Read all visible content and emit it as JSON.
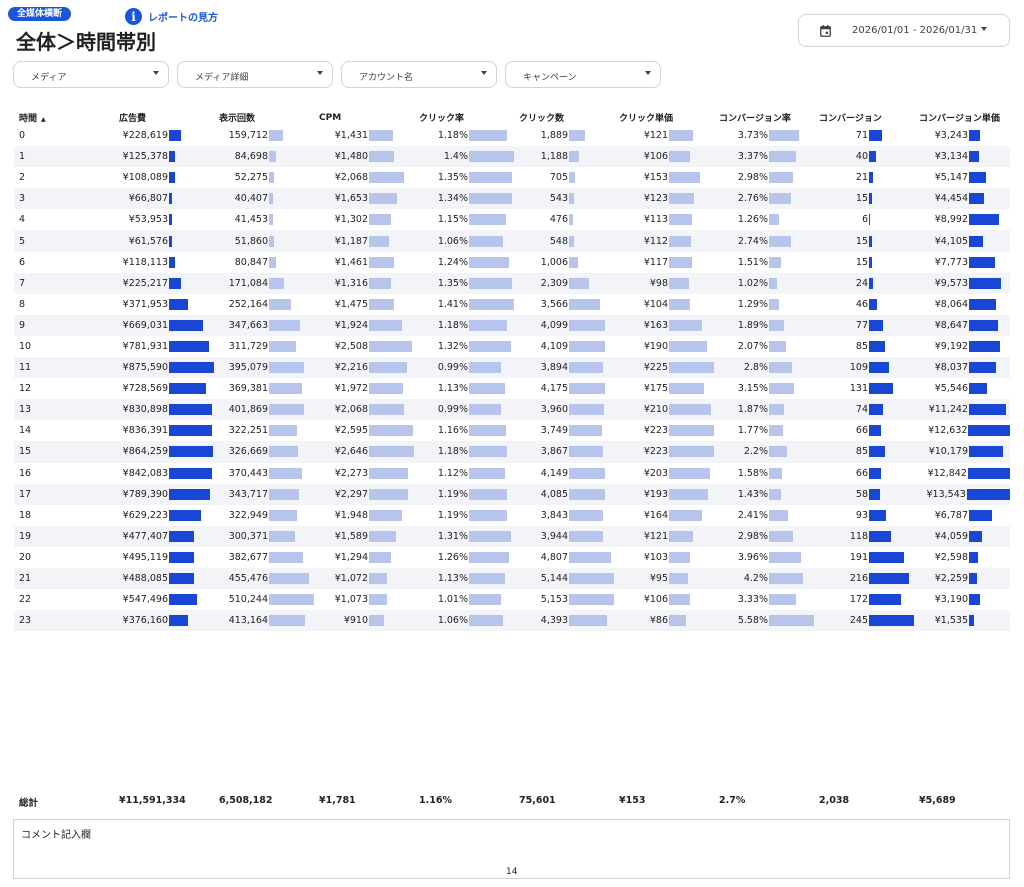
{
  "header": {
    "badge": "全媒体横断",
    "help_link": "レポートの見方",
    "help_icon": "info-icon",
    "title": "全体＞時間帯別"
  },
  "date_picker": {
    "icon": "calendar-icon",
    "range": "2026/01/01 - 2026/01/31"
  },
  "filters": [
    {
      "label": "メディア"
    },
    {
      "label": "メディア詳細"
    },
    {
      "label": "アカウント名"
    },
    {
      "label": "キャンペーン"
    }
  ],
  "table": {
    "headers": [
      "時間",
      "広告費",
      "表示回数",
      "CPM",
      "クリック率",
      "クリック数",
      "クリック単価",
      "コンバージョン率",
      "コンバージョン",
      "コンバージョン単価"
    ],
    "sort_indicator": "▲",
    "rows": [
      {
        "hour": "0",
        "cost": "¥228,619",
        "imp": "159,712",
        "cpm": "¥1,431",
        "ctr": "1.18%",
        "clicks": "1,889",
        "cpc": "¥121",
        "cvr": "3.73%",
        "cv": "71",
        "cpa": "¥3,243"
      },
      {
        "hour": "1",
        "cost": "¥125,378",
        "imp": "84,698",
        "cpm": "¥1,480",
        "ctr": "1.4%",
        "clicks": "1,188",
        "cpc": "¥106",
        "cvr": "3.37%",
        "cv": "40",
        "cpa": "¥3,134"
      },
      {
        "hour": "2",
        "cost": "¥108,089",
        "imp": "52,275",
        "cpm": "¥2,068",
        "ctr": "1.35%",
        "clicks": "705",
        "cpc": "¥153",
        "cvr": "2.98%",
        "cv": "21",
        "cpa": "¥5,147"
      },
      {
        "hour": "3",
        "cost": "¥66,807",
        "imp": "40,407",
        "cpm": "¥1,653",
        "ctr": "1.34%",
        "clicks": "543",
        "cpc": "¥123",
        "cvr": "2.76%",
        "cv": "15",
        "cpa": "¥4,454"
      },
      {
        "hour": "4",
        "cost": "¥53,953",
        "imp": "41,453",
        "cpm": "¥1,302",
        "ctr": "1.15%",
        "clicks": "476",
        "cpc": "¥113",
        "cvr": "1.26%",
        "cv": "6",
        "cpa": "¥8,992"
      },
      {
        "hour": "5",
        "cost": "¥61,576",
        "imp": "51,860",
        "cpm": "¥1,187",
        "ctr": "1.06%",
        "clicks": "548",
        "cpc": "¥112",
        "cvr": "2.74%",
        "cv": "15",
        "cpa": "¥4,105"
      },
      {
        "hour": "6",
        "cost": "¥118,113",
        "imp": "80,847",
        "cpm": "¥1,461",
        "ctr": "1.24%",
        "clicks": "1,006",
        "cpc": "¥117",
        "cvr": "1.51%",
        "cv": "15",
        "cpa": "¥7,773"
      },
      {
        "hour": "7",
        "cost": "¥225,217",
        "imp": "171,084",
        "cpm": "¥1,316",
        "ctr": "1.35%",
        "clicks": "2,309",
        "cpc": "¥98",
        "cvr": "1.02%",
        "cv": "24",
        "cpa": "¥9,573"
      },
      {
        "hour": "8",
        "cost": "¥371,953",
        "imp": "252,164",
        "cpm": "¥1,475",
        "ctr": "1.41%",
        "clicks": "3,566",
        "cpc": "¥104",
        "cvr": "1.29%",
        "cv": "46",
        "cpa": "¥8,064"
      },
      {
        "hour": "9",
        "cost": "¥669,031",
        "imp": "347,663",
        "cpm": "¥1,924",
        "ctr": "1.18%",
        "clicks": "4,099",
        "cpc": "¥163",
        "cvr": "1.89%",
        "cv": "77",
        "cpa": "¥8,647"
      },
      {
        "hour": "10",
        "cost": "¥781,931",
        "imp": "311,729",
        "cpm": "¥2,508",
        "ctr": "1.32%",
        "clicks": "4,109",
        "cpc": "¥190",
        "cvr": "2.07%",
        "cv": "85",
        "cpa": "¥9,192"
      },
      {
        "hour": "11",
        "cost": "¥875,590",
        "imp": "395,079",
        "cpm": "¥2,216",
        "ctr": "0.99%",
        "clicks": "3,894",
        "cpc": "¥225",
        "cvr": "2.8%",
        "cv": "109",
        "cpa": "¥8,037"
      },
      {
        "hour": "12",
        "cost": "¥728,569",
        "imp": "369,381",
        "cpm": "¥1,972",
        "ctr": "1.13%",
        "clicks": "4,175",
        "cpc": "¥175",
        "cvr": "3.15%",
        "cv": "131",
        "cpa": "¥5,546"
      },
      {
        "hour": "13",
        "cost": "¥830,898",
        "imp": "401,869",
        "cpm": "¥2,068",
        "ctr": "0.99%",
        "clicks": "3,960",
        "cpc": "¥210",
        "cvr": "1.87%",
        "cv": "74",
        "cpa": "¥11,242"
      },
      {
        "hour": "14",
        "cost": "¥836,391",
        "imp": "322,251",
        "cpm": "¥2,595",
        "ctr": "1.16%",
        "clicks": "3,749",
        "cpc": "¥223",
        "cvr": "1.77%",
        "cv": "66",
        "cpa": "¥12,632"
      },
      {
        "hour": "15",
        "cost": "¥864,259",
        "imp": "326,669",
        "cpm": "¥2,646",
        "ctr": "1.18%",
        "clicks": "3,867",
        "cpc": "¥223",
        "cvr": "2.2%",
        "cv": "85",
        "cpa": "¥10,179"
      },
      {
        "hour": "16",
        "cost": "¥842,083",
        "imp": "370,443",
        "cpm": "¥2,273",
        "ctr": "1.12%",
        "clicks": "4,149",
        "cpc": "¥203",
        "cvr": "1.58%",
        "cv": "66",
        "cpa": "¥12,842"
      },
      {
        "hour": "17",
        "cost": "¥789,390",
        "imp": "343,717",
        "cpm": "¥2,297",
        "ctr": "1.19%",
        "clicks": "4,085",
        "cpc": "¥193",
        "cvr": "1.43%",
        "cv": "58",
        "cpa": "¥13,543"
      },
      {
        "hour": "18",
        "cost": "¥629,223",
        "imp": "322,949",
        "cpm": "¥1,948",
        "ctr": "1.19%",
        "clicks": "3,843",
        "cpc": "¥164",
        "cvr": "2.41%",
        "cv": "93",
        "cpa": "¥6,787"
      },
      {
        "hour": "19",
        "cost": "¥477,407",
        "imp": "300,371",
        "cpm": "¥1,589",
        "ctr": "1.31%",
        "clicks": "3,944",
        "cpc": "¥121",
        "cvr": "2.98%",
        "cv": "118",
        "cpa": "¥4,059"
      },
      {
        "hour": "20",
        "cost": "¥495,119",
        "imp": "382,677",
        "cpm": "¥1,294",
        "ctr": "1.26%",
        "clicks": "4,807",
        "cpc": "¥103",
        "cvr": "3.96%",
        "cv": "191",
        "cpa": "¥2,598"
      },
      {
        "hour": "21",
        "cost": "¥488,085",
        "imp": "455,476",
        "cpm": "¥1,072",
        "ctr": "1.13%",
        "clicks": "5,144",
        "cpc": "¥95",
        "cvr": "4.2%",
        "cv": "216",
        "cpa": "¥2,259"
      },
      {
        "hour": "22",
        "cost": "¥547,496",
        "imp": "510,244",
        "cpm": "¥1,073",
        "ctr": "1.01%",
        "clicks": "5,153",
        "cpc": "¥106",
        "cvr": "3.33%",
        "cv": "172",
        "cpa": "¥3,190"
      },
      {
        "hour": "23",
        "cost": "¥376,160",
        "imp": "413,164",
        "cpm": "¥910",
        "ctr": "1.06%",
        "clicks": "4,393",
        "cpc": "¥86",
        "cvr": "5.58%",
        "cv": "245",
        "cpa": "¥1,535"
      }
    ],
    "totals": {
      "label": "総計",
      "cost": "¥11,591,334",
      "imp": "6,508,182",
      "cpm": "¥1,781",
      "ctr": "1.16%",
      "clicks": "75,601",
      "cpc": "¥153",
      "cvr": "2.7%",
      "cv": "2,038",
      "cpa": "¥5,689"
    }
  },
  "bar_colors": {
    "dark": "#1a46d6",
    "light": "#b7c5ec"
  },
  "comment": {
    "label": "コメント記入欄"
  },
  "page_number": "14"
}
